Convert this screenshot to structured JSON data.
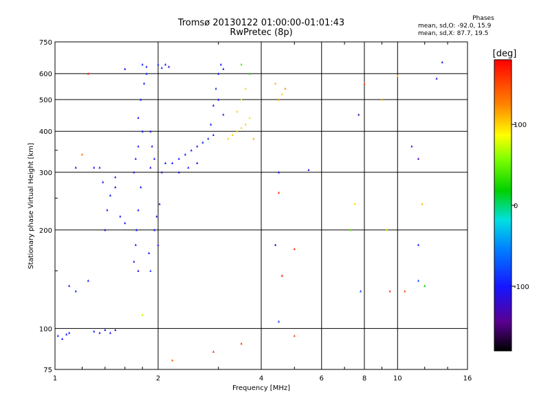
{
  "header": {
    "title_line1": "Tromsø 20130122 01:00:00-01:01:43",
    "title_line2": "RwPretec (8p)"
  },
  "phase_box": {
    "title": "Phases",
    "line1": "mean, sd,O: -92.0, 15.9",
    "line2": "mean, sd,X:  87.7, 19.5"
  },
  "colorbar": {
    "label": "[deg]",
    "ticks": [
      {
        "label": "100",
        "value": 100
      },
      {
        "label": "0",
        "value": 0
      },
      {
        "label": "-100",
        "value": -100
      }
    ],
    "range": [
      -180,
      180
    ]
  },
  "chart_data": {
    "type": "scatter",
    "title": "Tromsø 20130122 01:00:00-01:01:43",
    "subtitle": "RwPretec (8p)",
    "xlabel": "Frequency [MHz]",
    "ylabel": "Stationary phase Virtual Height [km]",
    "xscale": "log",
    "yscale": "log",
    "xlim": [
      1,
      16
    ],
    "ylim": [
      75,
      750
    ],
    "xticks": [
      {
        "label": "1",
        "value": 1
      },
      {
        "label": "2",
        "value": 2
      },
      {
        "label": "4",
        "value": 4
      },
      {
        "label": "6",
        "value": 6
      },
      {
        "label": "8",
        "value": 8
      },
      {
        "label": "10",
        "value": 10
      },
      {
        "label": "16",
        "value": 16
      }
    ],
    "xgrid": [
      2,
      4,
      6,
      8,
      10
    ],
    "yticks": [
      {
        "label": "75",
        "value": 75
      },
      {
        "label": "100",
        "value": 100
      },
      {
        "label": "200",
        "value": 200
      },
      {
        "label": "300",
        "value": 300
      },
      {
        "label": "400",
        "value": 400
      },
      {
        "label": "500",
        "value": 500
      },
      {
        "label": "600",
        "value": 600
      },
      {
        "label": "750",
        "value": 750
      }
    ],
    "ygrid": [
      100,
      200,
      300,
      400,
      500,
      600
    ],
    "grid": true,
    "color_by": "phase [deg]",
    "points": [
      [
        1.02,
        95,
        -100
      ],
      [
        1.05,
        93,
        -100
      ],
      [
        1.08,
        96,
        -105
      ],
      [
        1.1,
        97,
        -100
      ],
      [
        1.3,
        98,
        -100
      ],
      [
        1.35,
        97,
        -100
      ],
      [
        1.4,
        99,
        -105
      ],
      [
        1.45,
        97,
        -100
      ],
      [
        1.5,
        99,
        -100
      ],
      [
        1.4,
        200,
        -105
      ],
      [
        1.42,
        230,
        -100
      ],
      [
        1.45,
        255,
        -100
      ],
      [
        1.5,
        270,
        -105
      ],
      [
        1.38,
        280,
        -100
      ],
      [
        1.35,
        310,
        -100
      ],
      [
        1.55,
        220,
        -100
      ],
      [
        1.6,
        210,
        -110
      ],
      [
        1.1,
        135,
        -100
      ],
      [
        1.15,
        130,
        -95
      ],
      [
        1.25,
        140,
        -100
      ],
      [
        1.7,
        160,
        -100
      ],
      [
        1.72,
        180,
        -105
      ],
      [
        1.75,
        150,
        -110
      ],
      [
        1.73,
        200,
        -100
      ],
      [
        1.75,
        230,
        -100
      ],
      [
        1.78,
        270,
        -100
      ],
      [
        1.7,
        300,
        -100
      ],
      [
        1.72,
        330,
        -100
      ],
      [
        1.75,
        360,
        -100
      ],
      [
        1.8,
        400,
        -100
      ],
      [
        1.75,
        440,
        -105
      ],
      [
        1.78,
        500,
        -100
      ],
      [
        1.82,
        560,
        -100
      ],
      [
        1.85,
        600,
        -95
      ],
      [
        1.8,
        640,
        -100
      ],
      [
        1.85,
        630,
        -95
      ],
      [
        1.9,
        310,
        -100
      ],
      [
        1.95,
        330,
        -100
      ],
      [
        1.92,
        360,
        -105
      ],
      [
        1.9,
        400,
        -100
      ],
      [
        1.95,
        200,
        -100
      ],
      [
        1.98,
        220,
        -120
      ],
      [
        2.0,
        180,
        -110
      ],
      [
        2.02,
        240,
        -100
      ],
      [
        1.9,
        150,
        -80
      ],
      [
        1.88,
        170,
        -100
      ],
      [
        2.05,
        300,
        -100
      ],
      [
        2.1,
        320,
        -100
      ],
      [
        2.0,
        640,
        -100
      ],
      [
        2.05,
        625,
        -90
      ],
      [
        2.1,
        640,
        -100
      ],
      [
        2.15,
        630,
        -110
      ],
      [
        2.2,
        320,
        -100
      ],
      [
        2.3,
        330,
        -100
      ],
      [
        2.4,
        340,
        -100
      ],
      [
        2.5,
        350,
        -100
      ],
      [
        2.6,
        360,
        -100
      ],
      [
        2.7,
        370,
        -95
      ],
      [
        2.8,
        380,
        -95
      ],
      [
        2.9,
        390,
        -90
      ],
      [
        2.3,
        300,
        -100
      ],
      [
        2.45,
        310,
        -100
      ],
      [
        2.6,
        320,
        -100
      ],
      [
        2.85,
        420,
        -100
      ],
      [
        2.9,
        480,
        -100
      ],
      [
        2.95,
        540,
        -95
      ],
      [
        3.0,
        600,
        -100
      ],
      [
        3.05,
        640,
        -100
      ],
      [
        3.1,
        620,
        -110
      ],
      [
        3.0,
        500,
        -100
      ],
      [
        3.1,
        450,
        -95
      ],
      [
        3.2,
        380,
        100
      ],
      [
        3.3,
        390,
        100
      ],
      [
        3.4,
        400,
        95
      ],
      [
        3.5,
        410,
        100
      ],
      [
        3.6,
        420,
        100
      ],
      [
        3.7,
        440,
        95
      ],
      [
        3.4,
        460,
        100
      ],
      [
        3.5,
        500,
        90
      ],
      [
        3.6,
        540,
        100
      ],
      [
        3.7,
        600,
        30
      ],
      [
        3.5,
        640,
        40
      ],
      [
        3.8,
        380,
        110
      ],
      [
        4.5,
        500,
        110
      ],
      [
        4.6,
        520,
        100
      ],
      [
        4.7,
        540,
        120
      ],
      [
        4.4,
        560,
        110
      ],
      [
        1.2,
        340,
        130
      ],
      [
        1.3,
        310,
        -100
      ],
      [
        1.25,
        600,
        160
      ],
      [
        1.6,
        620,
        -110
      ],
      [
        2.2,
        80,
        140
      ],
      [
        1.8,
        110,
        70
      ],
      [
        2.9,
        85,
        160
      ],
      [
        3.5,
        90,
        160
      ],
      [
        5.0,
        95,
        150
      ],
      [
        4.5,
        300,
        -100
      ],
      [
        5.5,
        305,
        -110
      ],
      [
        4.5,
        260,
        160
      ],
      [
        4.4,
        180,
        -110
      ],
      [
        5.0,
        175,
        160
      ],
      [
        4.6,
        145,
        170
      ],
      [
        4.5,
        105,
        -80
      ],
      [
        7.5,
        240,
        100
      ],
      [
        7.3,
        200,
        50
      ],
      [
        7.8,
        130,
        -80
      ],
      [
        7.7,
        450,
        -130
      ],
      [
        8.0,
        560,
        150
      ],
      [
        9.0,
        500,
        110
      ],
      [
        9.3,
        200,
        80
      ],
      [
        9.5,
        130,
        160
      ],
      [
        10.0,
        590,
        110
      ],
      [
        11.0,
        360,
        -100
      ],
      [
        11.5,
        330,
        -130
      ],
      [
        11.8,
        240,
        110
      ],
      [
        11.5,
        180,
        -100
      ],
      [
        11.5,
        140,
        -80
      ],
      [
        12.0,
        135,
        20
      ],
      [
        13.0,
        580,
        -120
      ],
      [
        13.5,
        650,
        -100
      ],
      [
        10.5,
        130,
        150
      ],
      [
        1.15,
        310,
        -100
      ],
      [
        1.5,
        290,
        -100
      ]
    ]
  }
}
